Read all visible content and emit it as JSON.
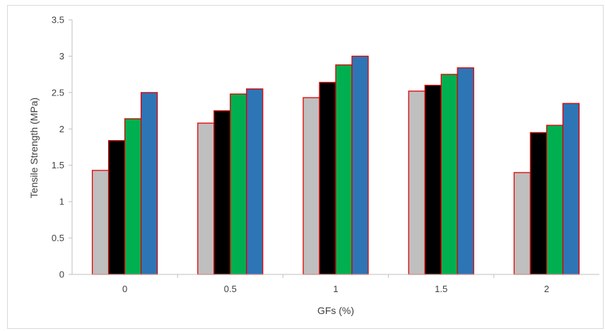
{
  "chart_data": {
    "type": "bar",
    "title": "",
    "xlabel": "GFs (%)",
    "ylabel": "Tensile  Strength (MPa)",
    "ylim": [
      0,
      3.5
    ],
    "yticks": [
      "0",
      "0.5",
      "1",
      "1.5",
      "2",
      "2.5",
      "3",
      "3.5"
    ],
    "categories": [
      "0",
      "0.5",
      "1",
      "1.5",
      "2"
    ],
    "series": [
      {
        "color": "#bfbfbf",
        "values": [
          1.43,
          2.08,
          2.43,
          2.52,
          1.4
        ]
      },
      {
        "color": "#000000",
        "values": [
          1.84,
          2.25,
          2.64,
          2.6,
          1.95
        ]
      },
      {
        "color": "#00b050",
        "values": [
          2.14,
          2.48,
          2.88,
          2.75,
          2.05
        ]
      },
      {
        "color": "#2e75b6",
        "values": [
          2.5,
          2.55,
          3.0,
          2.84,
          2.35
        ]
      }
    ],
    "bar_border_color": "#e00000",
    "grid": false,
    "legend": "none"
  }
}
